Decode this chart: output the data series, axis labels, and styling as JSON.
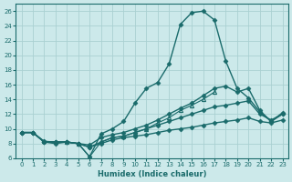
{
  "title": "",
  "xlabel": "Humidex (Indice chaleur)",
  "ylabel": "",
  "background_color": "#cce9ea",
  "grid_color": "#aad0d2",
  "line_color": "#1a6b6b",
  "xlim": [
    -0.5,
    23.5
  ],
  "ylim": [
    6,
    27
  ],
  "xticks": [
    0,
    1,
    2,
    3,
    4,
    5,
    6,
    7,
    8,
    9,
    10,
    11,
    12,
    13,
    14,
    15,
    16,
    17,
    18,
    19,
    20,
    21,
    22,
    23
  ],
  "yticks": [
    6,
    8,
    10,
    12,
    14,
    16,
    18,
    20,
    22,
    24,
    26
  ],
  "series": [
    {
      "x": [
        0,
        1,
        2,
        3,
        4,
        5,
        6,
        7,
        8,
        9,
        10,
        11,
        12,
        13,
        14,
        15,
        16,
        17,
        18,
        19,
        20,
        21,
        22,
        23
      ],
      "y": [
        9.5,
        9.5,
        8.3,
        8.2,
        8.2,
        8.0,
        6.2,
        9.3,
        10.0,
        11.0,
        13.5,
        15.5,
        16.3,
        18.8,
        24.2,
        25.8,
        26.0,
        24.8,
        19.2,
        15.5,
        14.2,
        12.3,
        11.0,
        12.0
      ],
      "marker": "D",
      "markersize": 2.5,
      "linewidth": 1.0
    },
    {
      "x": [
        0,
        1,
        2,
        3,
        4,
        5,
        6,
        7,
        8,
        9,
        10,
        11,
        12,
        13,
        14,
        15,
        16,
        17,
        18,
        19,
        20,
        21,
        22,
        23
      ],
      "y": [
        9.5,
        9.5,
        8.2,
        8.2,
        8.2,
        8.0,
        7.8,
        8.8,
        9.2,
        9.5,
        10.0,
        10.5,
        11.2,
        12.0,
        12.8,
        13.5,
        14.5,
        15.5,
        15.8,
        15.0,
        15.5,
        12.5,
        11.0,
        12.2
      ],
      "marker": "D",
      "markersize": 2.5,
      "linewidth": 1.0
    },
    {
      "x": [
        0,
        1,
        2,
        3,
        4,
        5,
        6,
        7,
        8,
        9,
        10,
        11,
        12,
        13,
        14,
        15,
        16,
        17,
        18,
        19,
        20,
        21,
        22,
        23
      ],
      "y": [
        9.5,
        9.5,
        8.2,
        8.2,
        8.2,
        8.0,
        7.5,
        8.2,
        8.8,
        9.0,
        9.5,
        10.0,
        10.5,
        11.0,
        11.5,
        12.0,
        12.5,
        13.0,
        13.2,
        13.5,
        13.8,
        12.0,
        11.2,
        12.0
      ],
      "marker": "D",
      "markersize": 2.5,
      "linewidth": 1.0
    },
    {
      "x": [
        0,
        1,
        2,
        3,
        4,
        5,
        6,
        7,
        8,
        9,
        10,
        11,
        12,
        13,
        14,
        15,
        16,
        17,
        18,
        19,
        20,
        21,
        22,
        23
      ],
      "y": [
        9.5,
        9.5,
        8.2,
        8.0,
        8.2,
        8.0,
        7.5,
        8.0,
        8.5,
        8.8,
        9.0,
        9.2,
        9.5,
        9.8,
        10.0,
        10.2,
        10.5,
        10.8,
        11.0,
        11.2,
        11.5,
        11.0,
        10.8,
        11.2
      ],
      "marker": "D",
      "markersize": 2.5,
      "linewidth": 1.0
    },
    {
      "x": [
        2,
        3,
        4,
        5,
        6,
        7,
        8,
        9,
        10,
        11,
        12,
        13,
        14,
        15,
        16,
        17
      ],
      "y": [
        8.3,
        8.2,
        8.2,
        8.0,
        6.2,
        8.2,
        8.8,
        9.0,
        9.5,
        10.0,
        10.8,
        11.5,
        12.5,
        13.2,
        14.0,
        15.0
      ],
      "marker": "^",
      "markersize": 3.0,
      "linewidth": 0.8
    }
  ]
}
